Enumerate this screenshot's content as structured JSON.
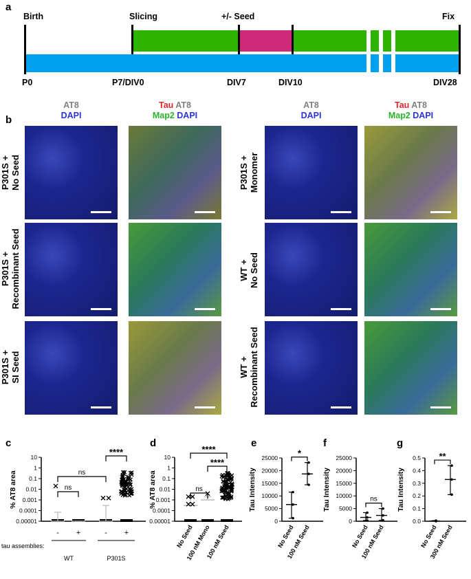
{
  "panel_labels": {
    "a": "a",
    "b": "b",
    "c": "c",
    "d": "d",
    "e": "e",
    "f": "f",
    "g": "g"
  },
  "timeline": {
    "top_labels": {
      "birth": "Birth",
      "slicing": "Slicing",
      "seed": "+/- Seed",
      "fix": "Fix"
    },
    "bottom_labels": {
      "p0": "P0",
      "p7": "P7/DIV0",
      "div7": "DIV7",
      "div10": "DIV10",
      "div28": "DIV28"
    },
    "colors": {
      "culture": "#2db300",
      "seed": "#cc2a78",
      "animal": "#00a2f0"
    }
  },
  "micrograph": {
    "headers": [
      {
        "line1_parts": [
          {
            "text": "AT8",
            "color": "gray"
          }
        ],
        "line2_parts": [
          {
            "text": "DAPI",
            "color": "blue"
          }
        ]
      },
      {
        "line1_parts": [
          {
            "text": "Tau",
            "color": "red"
          },
          {
            "text": " AT8",
            "color": "gray"
          }
        ],
        "line2_parts": [
          {
            "text": "Map2",
            "color": "green"
          },
          {
            "text": " DAPI",
            "color": "blue"
          }
        ]
      },
      {
        "line1_parts": [
          {
            "text": "AT8",
            "color": "gray"
          }
        ],
        "line2_parts": [
          {
            "text": "DAPI",
            "color": "blue"
          }
        ]
      },
      {
        "line1_parts": [
          {
            "text": "Tau",
            "color": "red"
          },
          {
            "text": " AT8",
            "color": "gray"
          }
        ],
        "line2_parts": [
          {
            "text": "Map2",
            "color": "green"
          },
          {
            "text": " DAPI",
            "color": "blue"
          }
        ]
      }
    ],
    "left_rows": [
      "P301S +\nNo Seed",
      "P301S +\nRecombinant Seed",
      "P301S +\nSI Seed"
    ],
    "right_rows": [
      "P301S +\nMonomer",
      "WT +\nNo Seed",
      "WT +\nRecombinant Seed"
    ],
    "header_colors": {
      "gray": "#808080",
      "blue": "#2a33d6",
      "red": "#e0282a",
      "green": "#2ab42a"
    }
  },
  "chart_data": [
    {
      "panel": "c",
      "type": "scatter",
      "ylabel": "% AT8 area",
      "yscale": "log",
      "yticks": [
        "10",
        "1",
        "0.1",
        "0.01",
        "0.001",
        "0.0001",
        "0.00001"
      ],
      "row_label": "tau assemblies:",
      "categories": [
        {
          "sign": "-",
          "group": "WT"
        },
        {
          "sign": "+",
          "group": "WT"
        },
        {
          "sign": "-",
          "group": "P301S"
        },
        {
          "sign": "+",
          "group": "P301S"
        }
      ],
      "groups": [
        "WT",
        "P301S"
      ],
      "comparisons": [
        {
          "from": 0,
          "to": 1,
          "label": "ns"
        },
        {
          "from": 0,
          "to": 2,
          "label": "ns"
        },
        {
          "from": 2,
          "to": 3,
          "label": "****"
        }
      ],
      "summary": [
        {
          "mean": 1e-05,
          "sd_top": 7e-05
        },
        {
          "mean": 1e-05,
          "sd_top": 1e-05
        },
        {
          "mean": 1e-05,
          "sd_top": 0.0003
        },
        {
          "mean": 0.2,
          "sd_top": 0.2
        }
      ]
    },
    {
      "panel": "d",
      "type": "scatter",
      "ylabel": "% AT8 area",
      "yscale": "log",
      "yticks": [
        "10",
        "1",
        "0.1",
        "0.01",
        "0.001",
        "0.0001",
        "0.00001"
      ],
      "categories": [
        "No Seed",
        "100 nM Mono",
        "100 nM Seed"
      ],
      "comparisons": [
        {
          "from": 0,
          "to": 1,
          "label": "ns"
        },
        {
          "from": 1,
          "to": 2,
          "label": "****"
        },
        {
          "from": 0,
          "to": 2,
          "label": "****"
        }
      ],
      "summary": [
        {
          "mean": 0.0003,
          "sd_top": 0.002
        },
        {
          "mean": 0.001,
          "sd_top": 0.002
        },
        {
          "mean": 0.1,
          "sd_top": 0.3
        }
      ]
    },
    {
      "panel": "e",
      "type": "scatter",
      "ylabel": "Tau Intensity",
      "yticks": [
        "25000",
        "20000",
        "15000",
        "10000",
        "5000",
        "0"
      ],
      "ylim": [
        0,
        25000
      ],
      "categories": [
        "No Seed",
        "100 nM Seed"
      ],
      "comparisons": [
        {
          "from": 0,
          "to": 1,
          "label": "*"
        }
      ],
      "points": [
        [
          11500,
          6600,
          1200
        ],
        [
          23200,
          18700,
          14400
        ]
      ]
    },
    {
      "panel": "f",
      "type": "scatter",
      "ylabel": "Tau Intensity",
      "yticks": [
        "25000",
        "20000",
        "15000",
        "10000",
        "5000",
        "0"
      ],
      "ylim": [
        0,
        25000
      ],
      "categories": [
        "No Seed",
        "100 nM Seed"
      ],
      "comparisons": [
        {
          "from": 0,
          "to": 1,
          "label": "ns"
        }
      ],
      "points": [
        [
          3400,
          1500,
          300
        ],
        [
          5000,
          2300,
          400
        ]
      ]
    },
    {
      "panel": "g",
      "type": "scatter",
      "ylabel": "Tau Intensity",
      "yticks": [
        "0.5",
        "0.4",
        "0.3",
        "0.2",
        "0.1",
        "0.0"
      ],
      "ylim": [
        0,
        0.5
      ],
      "categories": [
        "No Seed",
        "300 nM Seed"
      ],
      "comparisons": [
        {
          "from": 0,
          "to": 1,
          "label": "**"
        }
      ],
      "points": [
        [
          0.005,
          0.002,
          0.0
        ],
        [
          0.44,
          0.33,
          0.21
        ]
      ]
    }
  ]
}
